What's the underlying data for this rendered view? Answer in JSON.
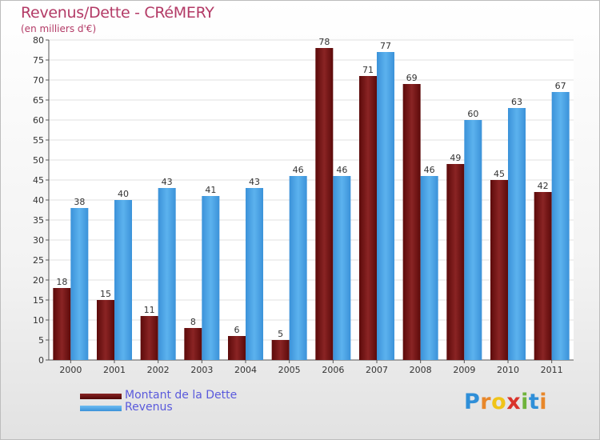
{
  "chart_data": {
    "type": "bar",
    "title": "Revenus/Dette - CRéMERY",
    "subtitle": "(en milliers d'€)",
    "categories": [
      "2000",
      "2001",
      "2002",
      "2003",
      "2004",
      "2005",
      "2006",
      "2007",
      "2008",
      "2009",
      "2010",
      "2011"
    ],
    "series": [
      {
        "name": "Montant de la Dette",
        "color": "#7a1717",
        "values": [
          18,
          15,
          11,
          8,
          6,
          5,
          78,
          71,
          69,
          49,
          45,
          42
        ]
      },
      {
        "name": "Revenus",
        "color": "#4aa3e6",
        "values": [
          38,
          40,
          43,
          41,
          43,
          46,
          46,
          77,
          46,
          60,
          63,
          67
        ]
      }
    ],
    "ylim": [
      0,
      80
    ],
    "yticks": [
      0,
      5,
      10,
      15,
      20,
      25,
      30,
      35,
      40,
      45,
      50,
      55,
      60,
      65,
      70,
      75,
      80
    ],
    "grid": true,
    "legend": "bottom-left"
  },
  "logo": {
    "text": "Proxiti",
    "letters": [
      "P",
      "r",
      "o",
      "x",
      "i",
      "t",
      "i"
    ]
  }
}
